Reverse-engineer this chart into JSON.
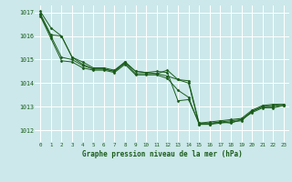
{
  "title": "Graphe pression niveau de la mer (hPa)",
  "bg_color": "#cce8ea",
  "grid_color": "#ffffff",
  "line_color": "#1a5c1a",
  "marker_color": "#1a5c1a",
  "xlim": [
    -0.5,
    23.5
  ],
  "ylim": [
    1011.5,
    1017.3
  ],
  "yticks": [
    1012,
    1013,
    1014,
    1015,
    1016,
    1017
  ],
  "xticks": [
    0,
    1,
    2,
    3,
    4,
    5,
    6,
    7,
    8,
    9,
    10,
    11,
    12,
    13,
    14,
    15,
    16,
    17,
    18,
    19,
    20,
    21,
    22,
    23
  ],
  "series": [
    [
      1017.05,
      1016.35,
      1016.0,
      1015.1,
      1014.8,
      1014.6,
      1014.6,
      1014.5,
      1014.9,
      1014.5,
      1014.45,
      1014.4,
      1014.55,
      1014.15,
      1014.1,
      1012.3,
      1012.3,
      1012.35,
      1012.4,
      1012.45,
      1012.8,
      1013.0,
      1013.05,
      1013.1
    ],
    [
      1016.95,
      1016.05,
      1016.0,
      1015.1,
      1014.9,
      1014.65,
      1014.65,
      1014.55,
      1014.9,
      1014.5,
      1014.45,
      1014.5,
      1014.45,
      1013.25,
      1013.3,
      1012.3,
      1012.35,
      1012.4,
      1012.45,
      1012.5,
      1012.85,
      1013.05,
      1013.1,
      1013.1
    ],
    [
      1016.9,
      1016.0,
      1015.1,
      1015.0,
      1014.75,
      1014.6,
      1014.6,
      1014.5,
      1014.85,
      1014.4,
      1014.4,
      1014.4,
      1014.3,
      1014.15,
      1014.0,
      1012.25,
      1012.25,
      1012.3,
      1012.35,
      1012.4,
      1012.8,
      1013.0,
      1013.0,
      1013.05
    ],
    [
      1016.85,
      1015.9,
      1014.95,
      1014.9,
      1014.65,
      1014.55,
      1014.55,
      1014.45,
      1014.8,
      1014.35,
      1014.35,
      1014.35,
      1014.2,
      1013.7,
      1013.4,
      1012.25,
      1012.25,
      1012.35,
      1012.3,
      1012.45,
      1012.75,
      1012.95,
      1012.95,
      1013.05
    ]
  ]
}
